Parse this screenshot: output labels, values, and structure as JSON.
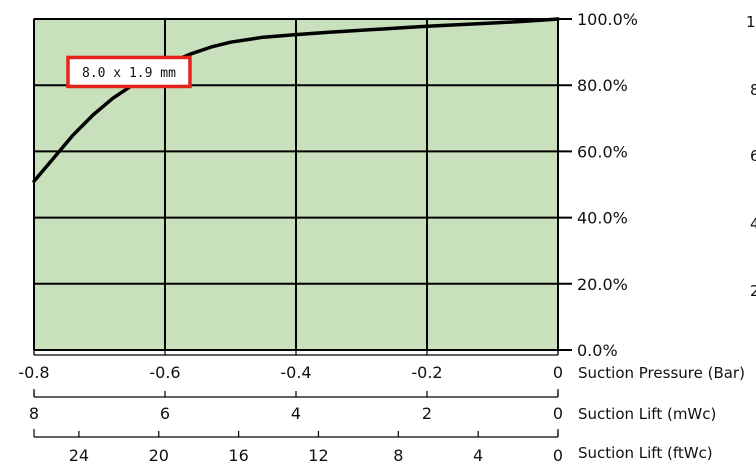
{
  "chart_data": {
    "type": "line",
    "colors": {
      "plot_background": "#c9e0bd",
      "grid": "#000000",
      "curve": "#000000",
      "annotation_border": "#e3231c"
    },
    "grid": true,
    "x": {
      "label": "Suction Pressure (Bar)",
      "lim": [
        -0.8,
        0
      ],
      "ticks": [
        -0.8,
        -0.6,
        -0.4,
        -0.2,
        0
      ],
      "tick_labels": [
        "-0.8",
        "-0.6",
        "-0.4",
        "-0.2",
        "0"
      ]
    },
    "y": {
      "lim": [
        0,
        100
      ],
      "ticks": [
        0,
        20,
        40,
        60,
        80,
        100
      ],
      "tick_labels": [
        "0.0%",
        "20.0%",
        "40.0%",
        "60.0%",
        "80.0%",
        "100.0%"
      ]
    },
    "secondary_x_axes": [
      {
        "label": "Suction Lift (mWc)",
        "lim": [
          8,
          0
        ],
        "ticks": [
          8,
          6,
          4,
          2,
          0
        ],
        "tick_labels": [
          "8",
          "6",
          "4",
          "2",
          "0"
        ]
      },
      {
        "label": "Suction Lift (ftWc)",
        "lim": [
          26.25,
          0
        ],
        "ticks": [
          24,
          20,
          16,
          12,
          8,
          4,
          0
        ],
        "tick_labels": [
          "24",
          "20",
          "16",
          "12",
          "8",
          "4",
          "0"
        ]
      }
    ],
    "series": [
      {
        "x": [
          -0.8,
          -0.77,
          -0.74,
          -0.71,
          -0.68,
          -0.65,
          -0.62,
          -0.59,
          -0.56,
          -0.53,
          -0.5,
          -0.45,
          -0.4,
          -0.35,
          -0.3,
          -0.25,
          -0.2,
          -0.15,
          -0.1,
          -0.05,
          0
        ],
        "y": [
          51,
          58,
          65,
          71,
          76,
          80,
          84,
          87,
          89.5,
          91.5,
          93,
          94.5,
          95.3,
          96,
          96.6,
          97.2,
          97.8,
          98.3,
          98.8,
          99.3,
          100
        ]
      }
    ],
    "annotations": [
      {
        "text": "8.0 x 1.9 mm",
        "x": -0.655,
        "y": 84
      }
    ],
    "right_edge_partial_labels": [
      "1",
      "8",
      "6",
      "4",
      "2"
    ]
  }
}
